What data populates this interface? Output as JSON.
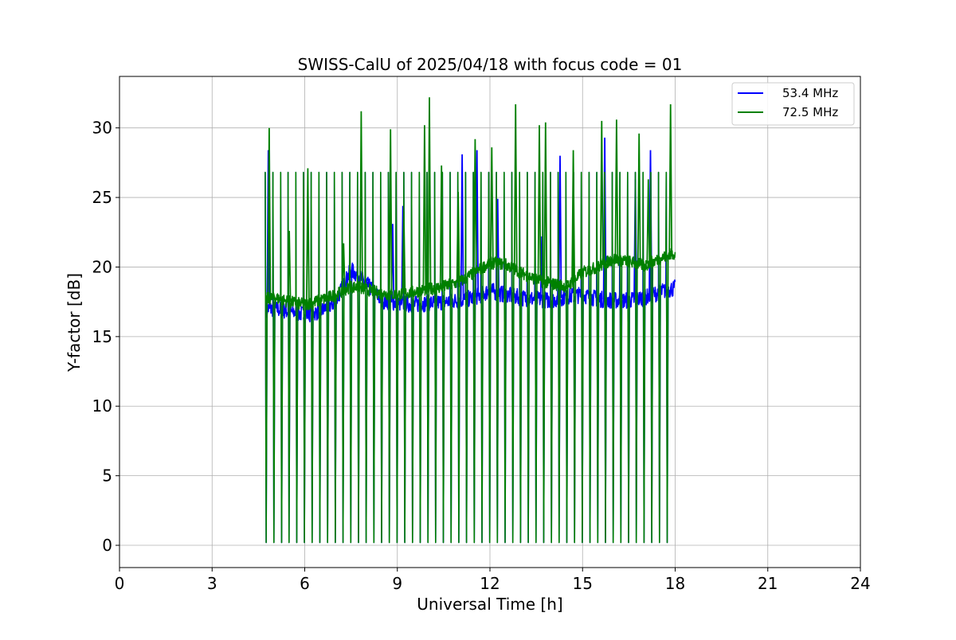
{
  "chart_data": {
    "type": "line",
    "title": "SWISS-CalU of 2025/04/18 with focus code = 01",
    "xlabel": "Universal Time [h]",
    "ylabel": "Y-factor [dB]",
    "xlim": [
      0,
      24
    ],
    "ylim": [
      -1.6,
      33.7
    ],
    "xticks": [
      "0",
      "3",
      "6",
      "9",
      "12",
      "15",
      "18",
      "21",
      "24"
    ],
    "yticks": [
      "0",
      "5",
      "10",
      "15",
      "20",
      "25",
      "30"
    ],
    "grid": true,
    "legend_position": "top-right",
    "colors": {
      "series_1": "#0000ff",
      "series_2": "#008000"
    },
    "spike_times_h": [
      4.72,
      4.97,
      5.22,
      5.46,
      5.71,
      5.96,
      6.21,
      6.46,
      6.71,
      6.96,
      7.21,
      7.46,
      7.71,
      7.96,
      8.21,
      8.46,
      8.71,
      8.96,
      9.21,
      9.46,
      9.71,
      9.96,
      10.21,
      10.46,
      10.71,
      10.96,
      11.21,
      11.46,
      11.71,
      11.96,
      12.21,
      12.46,
      12.71,
      12.96,
      13.21,
      13.46,
      13.71,
      13.96,
      14.21,
      14.46,
      14.71,
      14.96,
      15.21,
      15.46,
      15.71,
      15.96,
      16.21,
      16.46,
      16.71,
      16.96,
      17.21,
      17.46,
      17.71
    ],
    "spike_peak_db": 26.8,
    "spike_low_db": 0.2,
    "series": [
      {
        "name": "53.4 MHz",
        "baseline": {
          "x": [
            4.75,
            5.0,
            5.5,
            6.0,
            6.5,
            7.0,
            7.5,
            8.0,
            8.5,
            9.0,
            9.5,
            10.0,
            10.5,
            11.0,
            11.5,
            12.0,
            12.5,
            13.0,
            13.5,
            14.0,
            14.5,
            15.0,
            15.5,
            16.0,
            16.5,
            17.0,
            17.5,
            18.0
          ],
          "y": [
            17.0,
            17.0,
            16.8,
            16.6,
            16.8,
            17.5,
            19.8,
            18.8,
            17.6,
            17.4,
            17.3,
            17.4,
            17.5,
            17.6,
            17.8,
            18.3,
            18.0,
            17.8,
            17.7,
            17.6,
            17.9,
            18.0,
            17.7,
            17.6,
            17.6,
            17.8,
            18.2,
            18.5
          ]
        },
        "extra_peaks": [
          [
            4.82,
            28.4
          ],
          [
            9.18,
            24.4
          ],
          [
            8.85,
            23.1
          ],
          [
            11.1,
            28.1
          ],
          [
            11.58,
            28.4
          ],
          [
            12.25,
            24.9
          ],
          [
            13.68,
            22.2
          ],
          [
            14.27,
            28.0
          ],
          [
            15.72,
            29.3
          ],
          [
            16.71,
            26.3
          ],
          [
            17.2,
            28.4
          ]
        ]
      },
      {
        "name": "72.5 MHz",
        "baseline": {
          "x": [
            4.75,
            5.0,
            5.5,
            6.0,
            6.5,
            7.0,
            7.5,
            8.0,
            8.5,
            9.0,
            9.5,
            10.0,
            10.5,
            11.0,
            11.5,
            12.0,
            12.5,
            13.0,
            13.5,
            14.0,
            14.5,
            15.0,
            15.5,
            16.0,
            16.5,
            17.0,
            17.5,
            18.0
          ],
          "y": [
            17.7,
            17.8,
            17.5,
            17.3,
            17.6,
            18.0,
            18.6,
            18.4,
            18.1,
            18.0,
            18.2,
            18.4,
            18.6,
            18.9,
            19.6,
            20.3,
            20.2,
            19.6,
            19.1,
            18.8,
            18.6,
            19.6,
            20.0,
            20.6,
            20.4,
            20.1,
            20.6,
            21.0
          ]
        },
        "extra_peaks": [
          [
            4.85,
            30.0
          ],
          [
            5.5,
            22.6
          ],
          [
            6.1,
            27.1
          ],
          [
            7.26,
            21.7
          ],
          [
            7.83,
            31.2
          ],
          [
            8.78,
            29.9
          ],
          [
            9.21,
            24.0
          ],
          [
            9.88,
            30.2
          ],
          [
            10.04,
            32.2
          ],
          [
            10.43,
            27.3
          ],
          [
            10.97,
            25.4
          ],
          [
            11.52,
            29.2
          ],
          [
            12.06,
            28.6
          ],
          [
            12.83,
            31.7
          ],
          [
            13.6,
            30.2
          ],
          [
            13.8,
            30.4
          ],
          [
            14.7,
            28.4
          ],
          [
            15.62,
            30.5
          ],
          [
            16.1,
            30.6
          ],
          [
            16.83,
            29.6
          ],
          [
            17.13,
            26.3
          ],
          [
            17.85,
            31.7
          ]
        ]
      }
    ]
  }
}
